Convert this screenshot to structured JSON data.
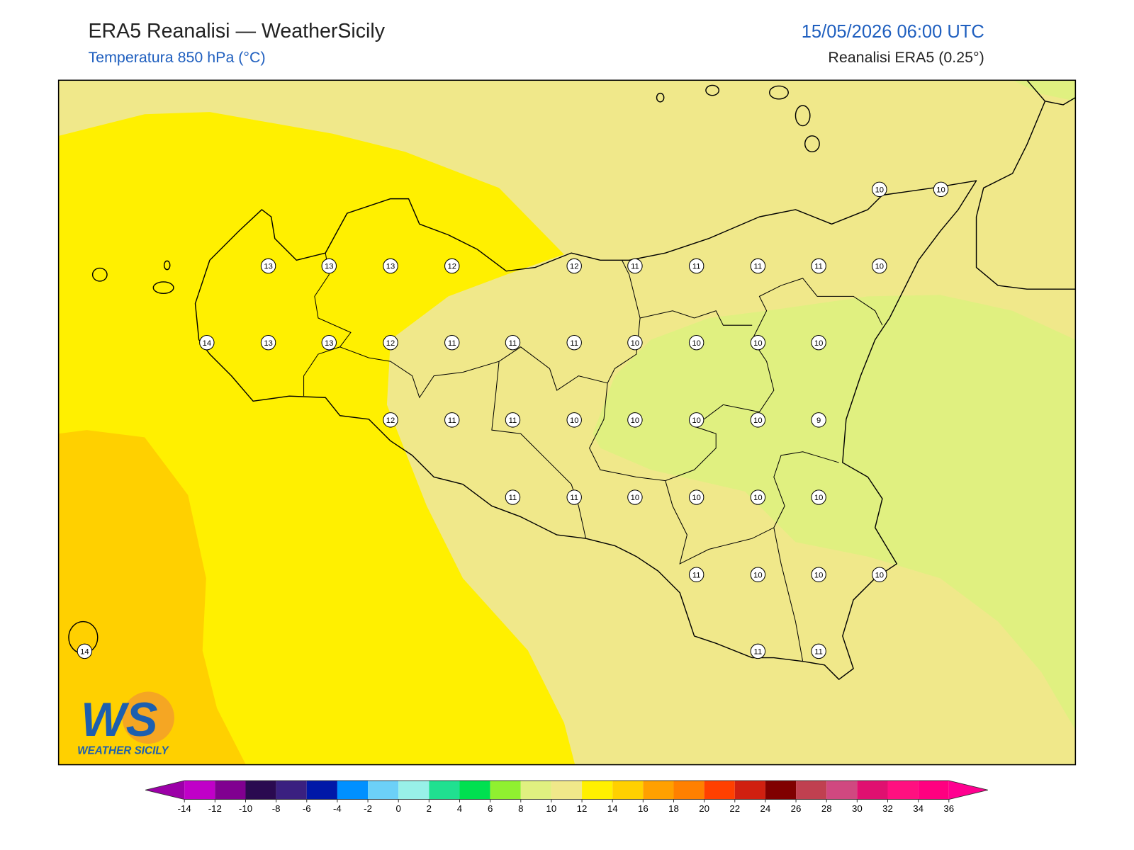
{
  "header": {
    "title": "ERA5 Reanalisi — WeatherSicily",
    "subtitle": "Temperatura 850 hPa (°C)",
    "datetime": "15/05/2026 06:00 UTC",
    "source": "Reanalisi ERA5 (0.25°)"
  },
  "stations": {
    "values": [
      10,
      10,
      13,
      13,
      13,
      12,
      12,
      11,
      11,
      11,
      11,
      10,
      14,
      13,
      13,
      12,
      11,
      11,
      11,
      10,
      10,
      10,
      10,
      12,
      11,
      11,
      10,
      10,
      10,
      10,
      9,
      11,
      11,
      10,
      10,
      10,
      10,
      11,
      10,
      10,
      10,
      14,
      11,
      11
    ]
  },
  "colorbar": {
    "ticks": [
      -14,
      -12,
      -10,
      -8,
      -6,
      -4,
      -2,
      0,
      2,
      4,
      6,
      8,
      10,
      12,
      14,
      16,
      18,
      20,
      22,
      24,
      26,
      28,
      30,
      32,
      34,
      36
    ],
    "colors": [
      "#c000c8",
      "#800090",
      "#2a0a50",
      "#3a2080",
      "#0018a8",
      "#0090ff",
      "#6cd0f8",
      "#98f0e8",
      "#20e090",
      "#00e050",
      "#90f030",
      "#e0f080",
      "#f0e88a",
      "#fff000",
      "#ffd000",
      "#ffa000",
      "#ff8000",
      "#ff4000",
      "#d02010",
      "#800000",
      "#c04050",
      "#d04880",
      "#e01070",
      "#ff1080",
      "#ff0080"
    ],
    "under_color": "#9c00a8",
    "over_color": "#ff0090"
  },
  "logo": {
    "mark": "WS",
    "text": "WEATHER SICILY"
  }
}
